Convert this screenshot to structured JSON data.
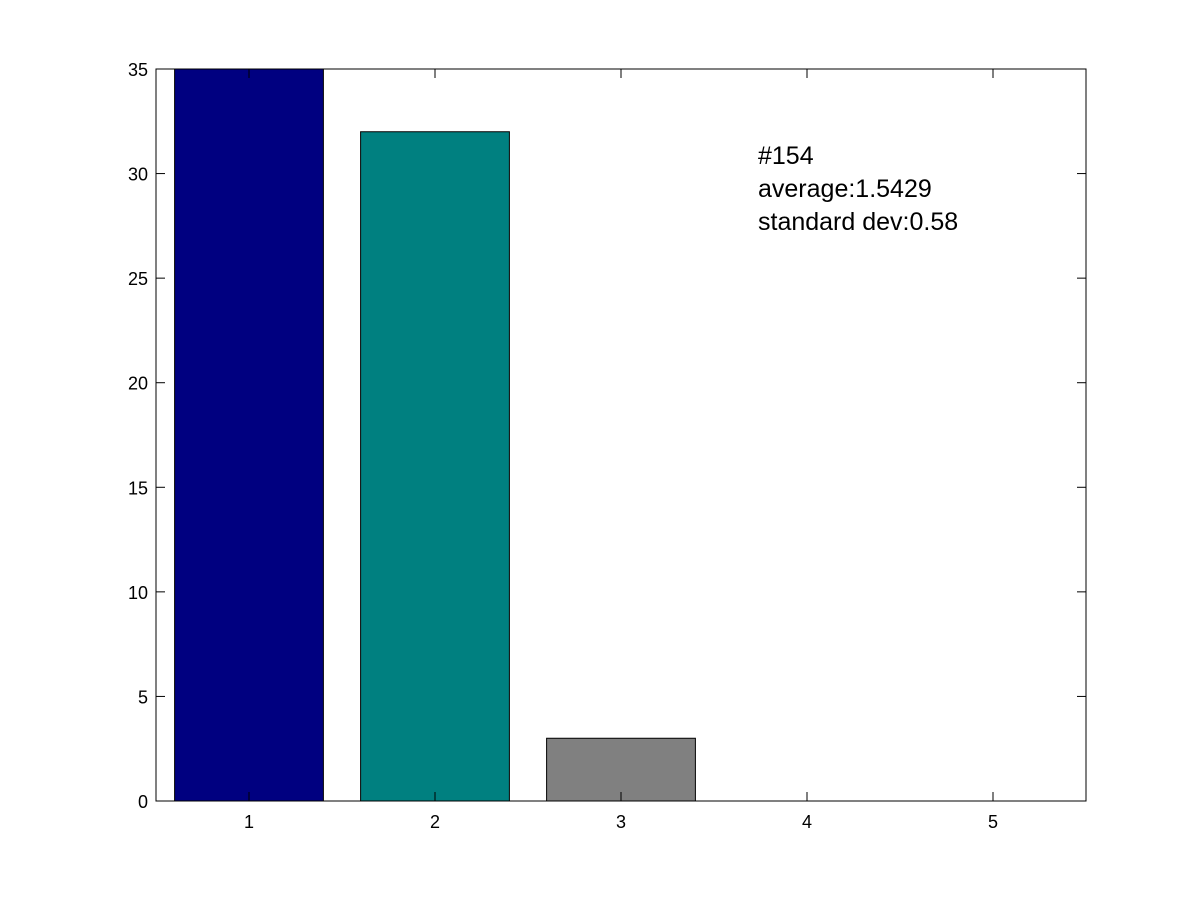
{
  "chart_data": {
    "type": "bar",
    "categories": [
      "1",
      "2",
      "3",
      "4",
      "5"
    ],
    "values": [
      35,
      32,
      3,
      0,
      0
    ],
    "colors": [
      "#000080",
      "#008080",
      "#808080",
      "#808080",
      "#808080"
    ],
    "ylim": [
      0,
      35
    ],
    "yticks": [
      0,
      5,
      10,
      15,
      20,
      25,
      30,
      35
    ],
    "xlim": [
      0.5,
      5.5
    ],
    "title": "",
    "xlabel": "",
    "ylabel": "",
    "grid": false,
    "annotation": {
      "lines": [
        "#154",
        "average:1.5429",
        "standard dev:0.58"
      ]
    }
  }
}
